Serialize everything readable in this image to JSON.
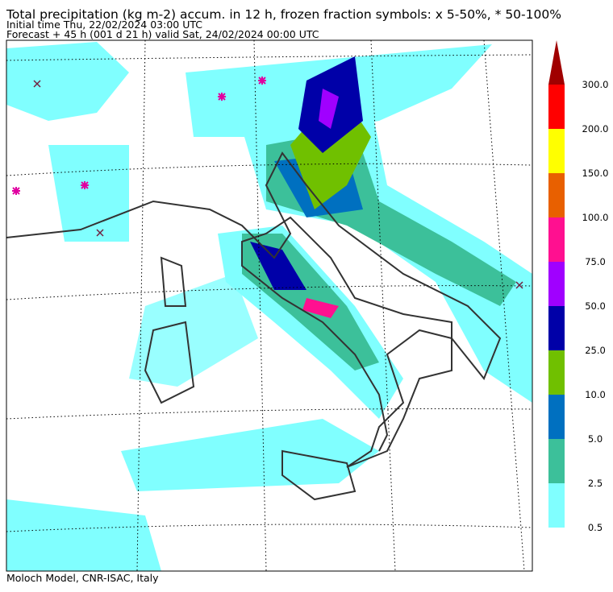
{
  "header": {
    "title": "Total precipitation (kg m-2) accum. in 12 h, frozen fraction symbols: x 5-50%, * 50-100%",
    "initial_time": "Initial time  Thu, 22/02/2024  03:00 UTC",
    "forecast": "Forecast  +  45 h  (001 d 21 h)  valid Sat, 24/02/2024 00:00 UTC"
  },
  "colorbar": {
    "labels": [
      "0.5",
      "2.5",
      "5.0",
      "10.0",
      "25.0",
      "50.0",
      "75.0",
      "100.0",
      "150.0",
      "200.0",
      "300.0"
    ],
    "colors": [
      "#80ffff",
      "#3cc09a",
      "#0070c0",
      "#70c000",
      "#0000a8",
      "#a000ff",
      "#ff1090",
      "#e86000",
      "#ffff00",
      "#ff0000",
      "#a00000"
    ]
  },
  "footer": "Moloch Model, CNR-ISAC, Italy"
}
